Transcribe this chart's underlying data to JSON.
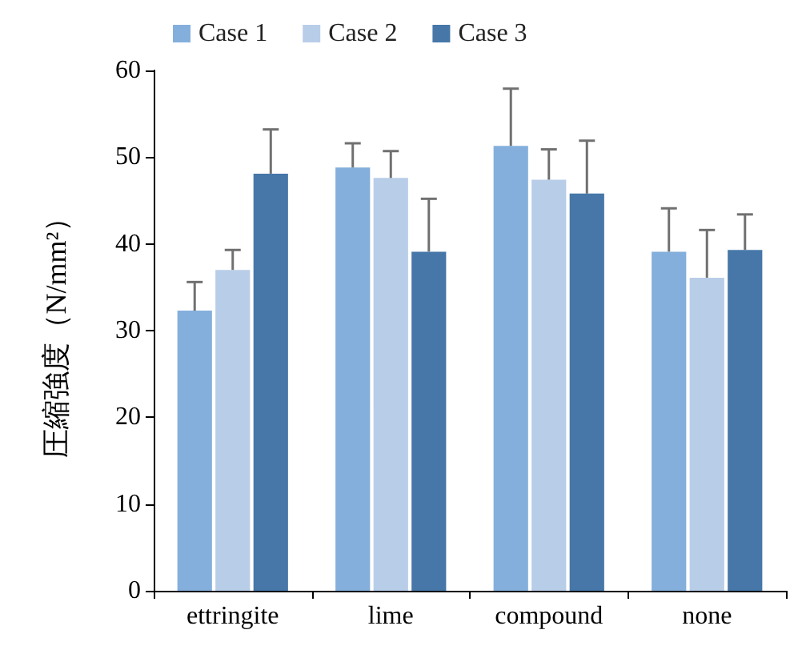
{
  "chart_data": {
    "type": "bar",
    "ylabel": "圧縮強度（N/mm²）",
    "categories": [
      "ettringite",
      "lime",
      "compound",
      "none"
    ],
    "series": [
      {
        "name": "Case 1",
        "color": "#84afdc",
        "values": [
          32.3,
          48.8,
          51.3,
          39.1
        ],
        "errors": [
          [
            32.3,
            35.6
          ],
          [
            48.8,
            51.6
          ],
          [
            51.3,
            57.9
          ],
          [
            39.1,
            44.1
          ]
        ]
      },
      {
        "name": "Case 2",
        "color": "#b8cde8",
        "values": [
          37.0,
          47.6,
          47.4,
          36.1
        ],
        "errors": [
          [
            37.0,
            39.3
          ],
          [
            47.6,
            50.7
          ],
          [
            47.4,
            50.9
          ],
          [
            36.1,
            41.6
          ]
        ]
      },
      {
        "name": "Case 3",
        "color": "#4677a8",
        "values": [
          48.1,
          39.1,
          45.8,
          39.3
        ],
        "errors": [
          [
            48.1,
            53.2
          ],
          [
            39.1,
            45.2
          ],
          [
            45.8,
            51.9
          ],
          [
            39.3,
            43.4
          ]
        ]
      }
    ],
    "ylim": [
      0,
      60
    ],
    "yticks": [
      0,
      10,
      20,
      30,
      40,
      50,
      60
    ],
    "grid": false,
    "legend": "top"
  }
}
